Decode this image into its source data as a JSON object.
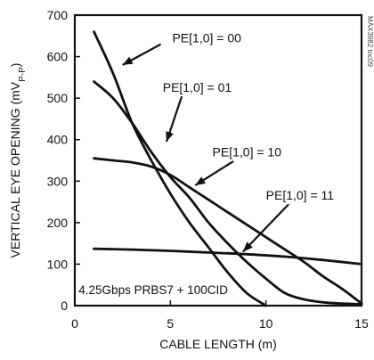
{
  "chart_data": {
    "type": "line",
    "xlabel": "CABLE LENGTH (m)",
    "ylabel_main": "VERTICAL EYE OPENING (mV",
    "ylabel_sub": "P-P",
    "ylabel_close": ")",
    "xlim": [
      0,
      15
    ],
    "ylim": [
      0,
      700
    ],
    "xticks": [
      0,
      5,
      10,
      15
    ],
    "yticks": [
      0,
      100,
      200,
      300,
      400,
      500,
      600,
      700
    ],
    "grid": false,
    "condition_label": "4.25Gbps PRBS7 + 100CID",
    "figure_code": "MAX3982 toc09",
    "series": [
      {
        "name": "PE[1,0] = 00",
        "x": [
          1,
          2,
          3,
          4,
          5,
          6,
          7,
          8,
          9,
          10
        ],
        "y": [
          660,
          560,
          440,
          350,
          270,
          200,
          140,
          80,
          30,
          0
        ]
      },
      {
        "name": "PE[1,0] = 01",
        "x": [
          1,
          2,
          3,
          4,
          5,
          6,
          7,
          8,
          9,
          10,
          11,
          12,
          13,
          14,
          15
        ],
        "y": [
          540,
          500,
          440,
          370,
          310,
          260,
          200,
          150,
          105,
          65,
          30,
          15,
          8,
          5,
          3
        ]
      },
      {
        "name": "PE[1,0] = 10",
        "x": [
          1,
          2,
          3,
          4,
          5,
          6,
          7,
          8,
          9,
          10,
          11,
          12,
          13,
          14,
          15
        ],
        "y": [
          355,
          350,
          345,
          335,
          315,
          285,
          255,
          225,
          195,
          165,
          135,
          105,
          70,
          40,
          5
        ]
      },
      {
        "name": "PE[1,0] = 11",
        "x": [
          1,
          3,
          5,
          7,
          9,
          11,
          13,
          15
        ],
        "y": [
          137,
          135,
          132,
          128,
          124,
          118,
          110,
          100
        ]
      }
    ]
  }
}
